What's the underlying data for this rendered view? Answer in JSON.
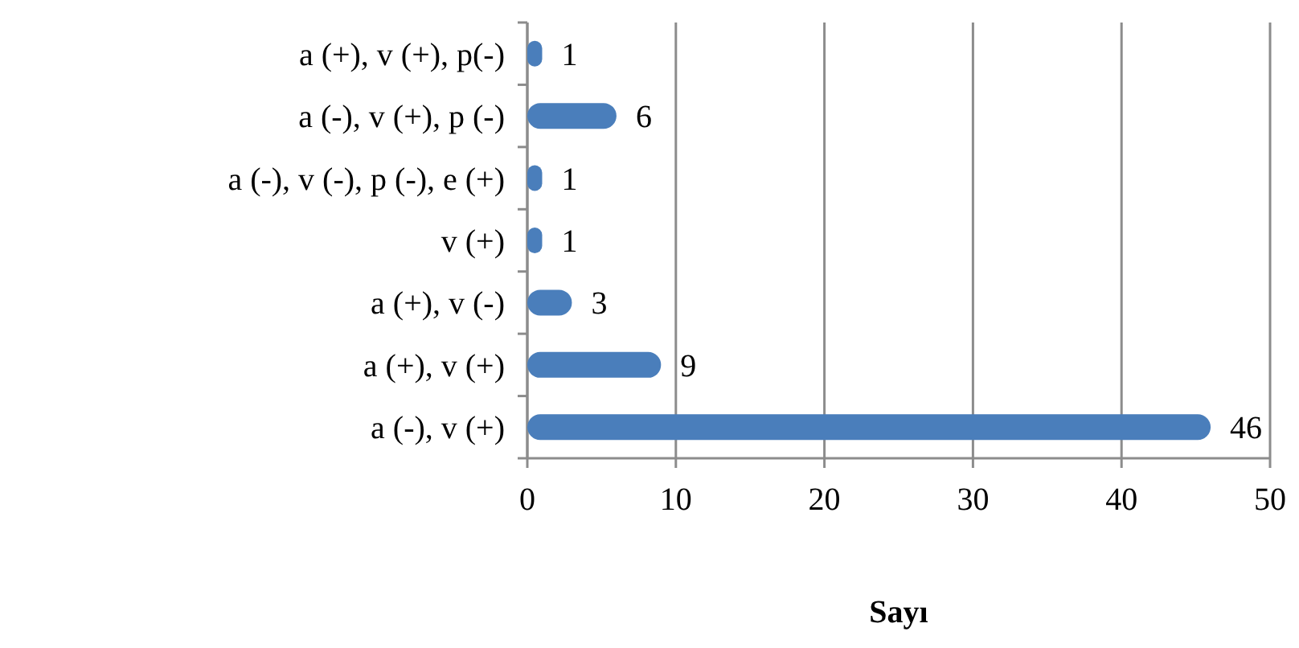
{
  "chart_data": {
    "type": "bar",
    "orientation": "horizontal",
    "xlabel": "Sayı",
    "categories": [
      "a (+), v (+), p(-)",
      "a (-), v (+), p (-)",
      "a (-), v (-), p (-), e (+)",
      "v (+)",
      "a (+), v (-)",
      "a (+), v (+)",
      "a (-), v (+)"
    ],
    "values": [
      1,
      6,
      1,
      1,
      3,
      9,
      46
    ],
    "color": "#4a7ebb",
    "xlim": [
      0,
      50
    ],
    "xticks": [
      0,
      10,
      20,
      30,
      40,
      50
    ],
    "grid": "x",
    "data_labels": true
  }
}
